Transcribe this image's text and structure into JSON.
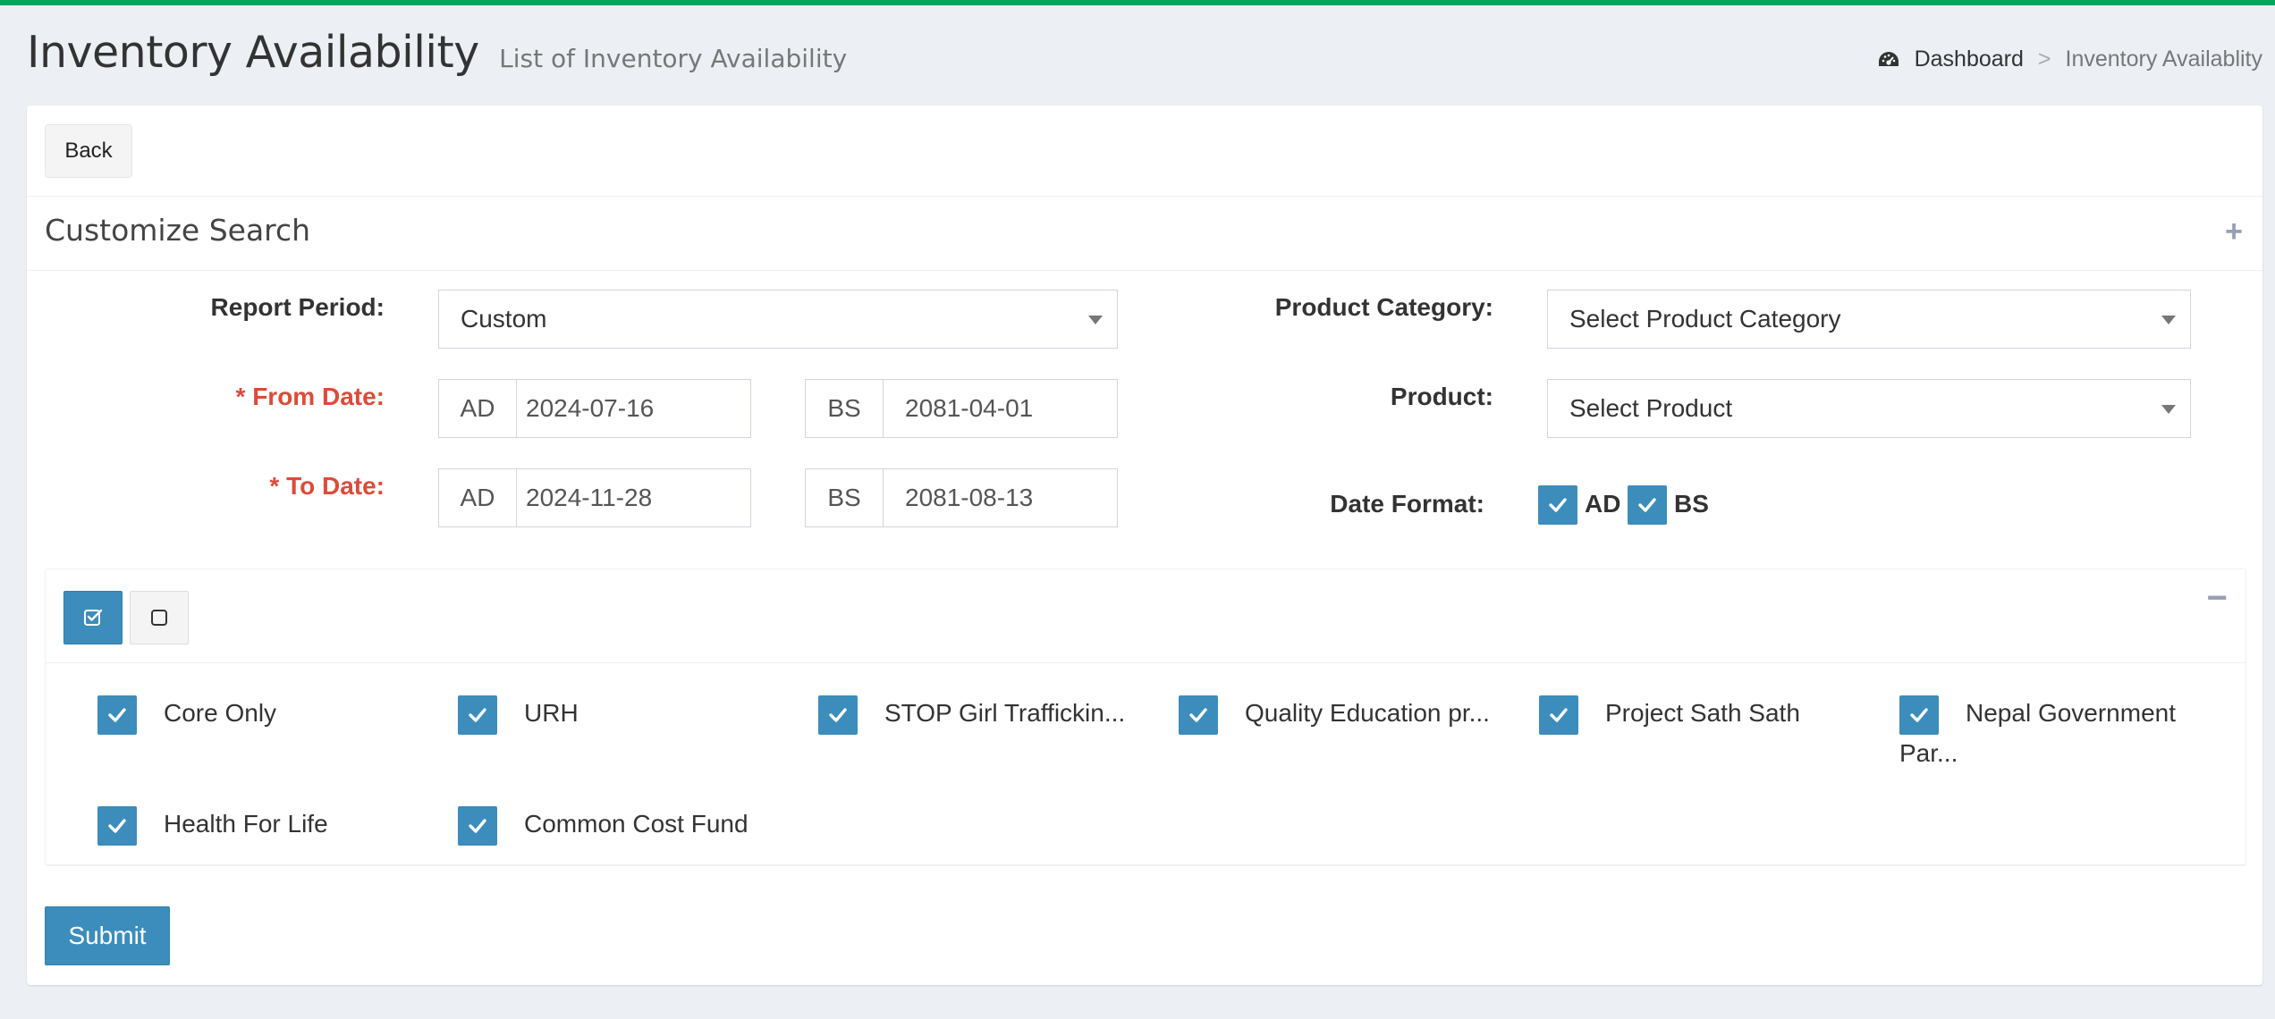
{
  "header": {
    "title": "Inventory Availability",
    "subtitle": "List of Inventory Availability",
    "breadcrumb": {
      "home": "Dashboard",
      "separator": ">",
      "current": "Inventory Availablity"
    }
  },
  "buttons": {
    "back": "Back",
    "submit": "Submit"
  },
  "search": {
    "title": "Customize Search",
    "expand_icon": "+",
    "collapse_icon": "−",
    "report_period": {
      "label": "Report Period:",
      "value": "Custom"
    },
    "from_date": {
      "label": "* From Date:",
      "ad_label": "AD",
      "ad_value": "2024-07-16",
      "bs_label": "BS",
      "bs_value": "2081-04-01"
    },
    "to_date": {
      "label": "* To Date:",
      "ad_label": "AD",
      "ad_value": "2024-11-28",
      "bs_label": "BS",
      "bs_value": "2081-08-13"
    },
    "product_category": {
      "label": "Product Category:",
      "value": "Select Product Category"
    },
    "product": {
      "label": "Product:",
      "value": "Select Product"
    },
    "date_format": {
      "label": "Date Format:",
      "ad": "AD",
      "bs": "BS",
      "ad_checked": true,
      "bs_checked": true
    }
  },
  "projects": [
    {
      "label": "Core Only",
      "checked": true
    },
    {
      "label": "URH",
      "checked": true
    },
    {
      "label": "STOP Girl Traffickin...",
      "checked": true
    },
    {
      "label": "Quality Education pr...",
      "checked": true
    },
    {
      "label": "Project Sath Sath",
      "checked": true
    },
    {
      "label": "Nepal Government Par...",
      "checked": true
    },
    {
      "label": "Health For Life",
      "checked": true
    },
    {
      "label": "Common Cost Fund",
      "checked": true
    }
  ],
  "colors": {
    "accent": "#3c8dbc",
    "topbar": "#00a65a",
    "required": "#dd4b39"
  }
}
